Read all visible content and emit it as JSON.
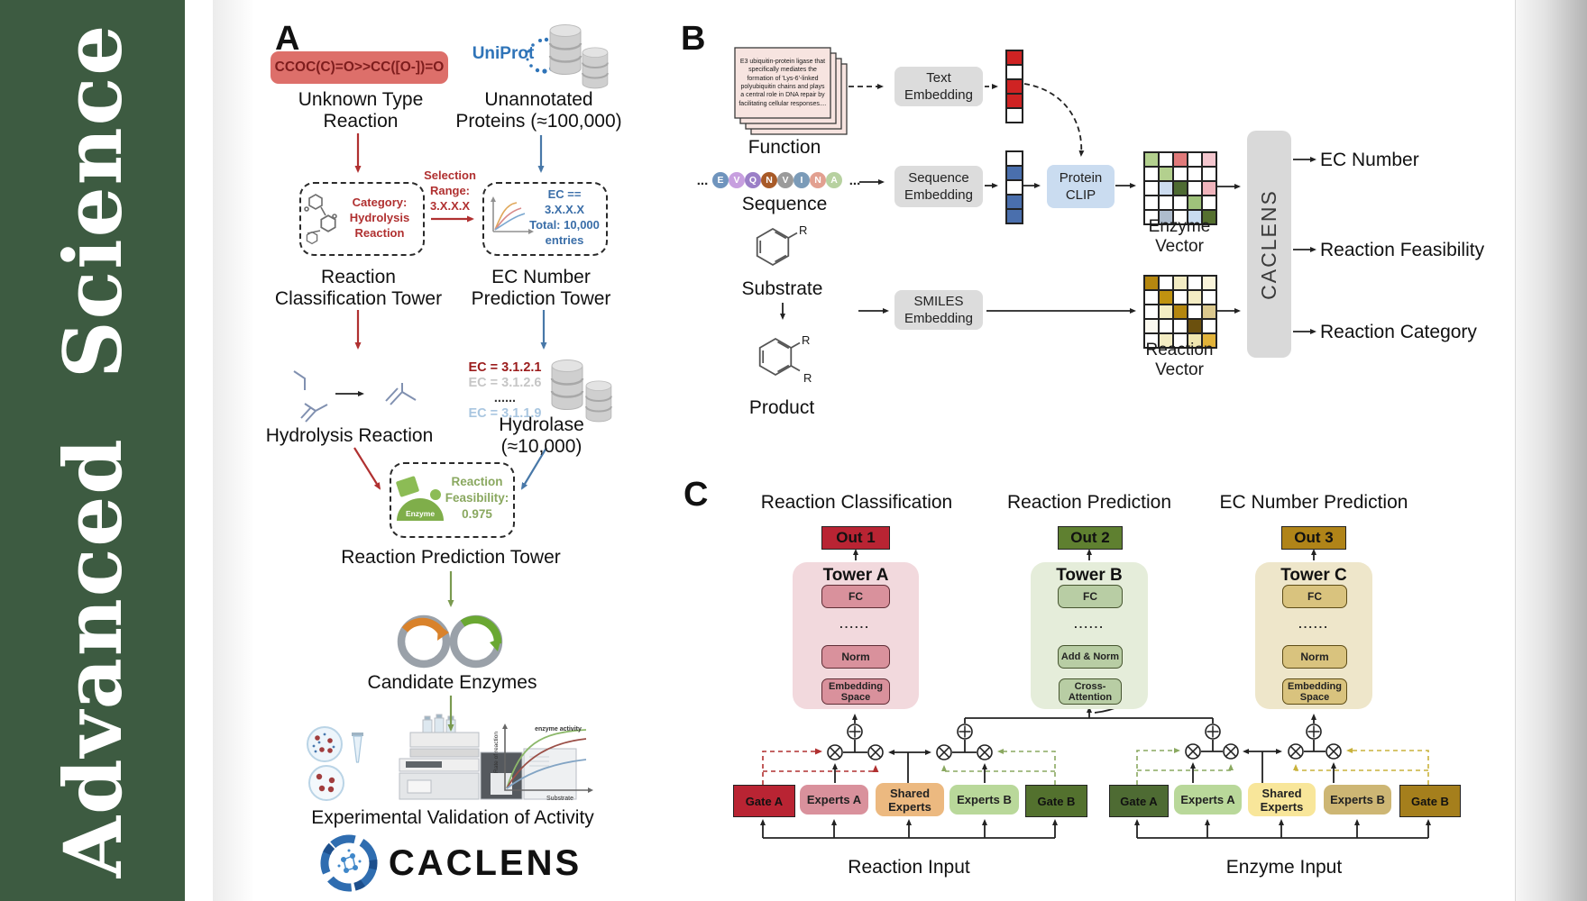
{
  "journal": {
    "name": "Advanced  Science"
  },
  "colors": {
    "journal_green": "#3d5b41",
    "smiles_box": "#dd6f6a",
    "arrow_red": "#b03030",
    "arrow_blue": "#4878a8",
    "arrow_green": "#7a9a50",
    "towerA_red": "#b92433",
    "towerB_green": "#5f8030",
    "towerC_gold": "#b08418"
  },
  "panelA": {
    "label": "A",
    "smiles": "CCOC(C)=O>>CC([O-])=O",
    "unknown_reaction": "Unknown Type\nReaction",
    "uniprot": "UniProt",
    "unannotated": "Unannotated\nProteins (≈100,000)",
    "category_text": "Category:\nHydrolysis\nReaction",
    "selection": "Selection\nRange:\n3.X.X.X",
    "ec_filter": "EC == 3.X.X.X\nTotal: 10,000\nentries",
    "classification_tower": "Reaction\nClassification Tower",
    "ec_tower": "EC Number\nPrediction Tower",
    "ec_list": [
      {
        "text": "EC = 3.1.2.1",
        "color": "#9b1c1c"
      },
      {
        "text": "EC = 3.1.2.6",
        "color": "#c6c6c6"
      },
      {
        "text": "......",
        "color": "#3a3a3a"
      },
      {
        "text": "EC = 3.1.1.9",
        "color": "#a9c6e0"
      }
    ],
    "hydrolysis": "Hydrolysis Reaction",
    "hydrolase": "Hydrolase (≈10,000)",
    "enzyme_badge": "Enzyme",
    "feasibility": "Reaction\nFeasibility:\n0.975",
    "prediction_tower": "Reaction Prediction Tower",
    "candidates": "Candidate Enzymes",
    "mini_chart": {
      "annotation": "enzyme activity",
      "ylabel": "Rate of reaction",
      "xlabel": "Substrate"
    },
    "validation": "Experimental Validation of Activity",
    "logo_text": "CACLENS"
  },
  "panelB": {
    "label": "B",
    "function_card": "E3 ubiquitin-protein ligase that specifically mediates the formation of 'Lys-6'-linked polyubiquitin chains and plays a central role in DNA repair by facilitating cellular responses....",
    "function_label": "Function",
    "ellipsis": "...",
    "residues": [
      {
        "letter": "E",
        "color": "#6f94bd"
      },
      {
        "letter": "V",
        "color": "#c79fdf"
      },
      {
        "letter": "Q",
        "color": "#9b7fc7"
      },
      {
        "letter": "N",
        "color": "#a85a28"
      },
      {
        "letter": "V",
        "color": "#9a9a9a"
      },
      {
        "letter": "I",
        "color": "#7b9bb8"
      },
      {
        "letter": "N",
        "color": "#e2a090"
      },
      {
        "letter": "A",
        "color": "#b7d1a0"
      }
    ],
    "sequence_label": "Sequence",
    "substrate_label": "Substrate",
    "product_label": "Product",
    "r_group": "R",
    "text_embedding": "Text\nEmbedding",
    "sequence_embedding": "Sequence\nEmbedding",
    "smiles_embedding": "SMILES\nEmbedding",
    "protein_clip": "Protein\nCLIP",
    "text_vector": [
      "#cf2323",
      "#ffffff",
      "#cf2323",
      "#cf2323",
      "#ffffff"
    ],
    "sequence_vector": [
      "#ffffff",
      "#4a6fad",
      "#ffffff",
      "#4a6fad",
      "#4a6fad"
    ],
    "enzyme_vector_label": "Enzyme Vector",
    "reaction_vector_label": "Reaction Vector",
    "enzyme_grid": [
      "#b3d08e",
      "#ffffff",
      "#e07a7a",
      "#ffffff",
      "#f4c6ce",
      "#ffffff",
      "#b3d08e",
      "#ffffff",
      "#ffffff",
      "#ffffff",
      "#ffffff",
      "#ccdcf0",
      "#4e6b33",
      "#ffffff",
      "#f0b4bc",
      "#ffffff",
      "#ffffff",
      "#ffffff",
      "#9fc27b",
      "#ffffff",
      "#ffffff",
      "#aebccd",
      "#ffffff",
      "#c8dcf0",
      "#55702f"
    ],
    "reaction_grid": [
      "#b5870f",
      "#ffffff",
      "#f3ecc3",
      "#ffffff",
      "#faf4da",
      "#ffffff",
      "#bf9210",
      "#ffffff",
      "#f3ecc3",
      "#ffffff",
      "#ffffff",
      "#f3ecc3",
      "#b5870f",
      "#ffffff",
      "#dcc98e",
      "#fbf9ef",
      "#ffffff",
      "#ffffff",
      "#6b500e",
      "#ffffff",
      "#ffffff",
      "#f3ecc3",
      "#ffffff",
      "#f0e6b0",
      "#e2b33a"
    ],
    "caclens": "CACLENS",
    "outputs": [
      "EC Number",
      "Reaction Feasibility",
      "Reaction Category"
    ]
  },
  "panelC": {
    "label": "C",
    "towers": [
      {
        "header": "Reaction Classification",
        "out": "Out 1",
        "name": "Tower A",
        "fc": "FC",
        "dots": "......",
        "mid": "Norm",
        "base": "Embedding\nSpace"
      },
      {
        "header": "Reaction Prediction",
        "out": "Out 2",
        "name": "Tower B",
        "fc": "FC",
        "dots": "......",
        "mid": "Add & Norm",
        "base": "Cross-\nAttention"
      },
      {
        "header": "EC Number Prediction",
        "out": "Out 3",
        "name": "Tower C",
        "fc": "FC",
        "dots": "......",
        "mid": "Norm",
        "base": "Embedding\nSpace"
      }
    ],
    "moe_groups": [
      {
        "gate_a": "Gate A",
        "experts_a": "Experts A",
        "shared": "Shared\nExperts",
        "experts_b": "Experts B",
        "gate_b": "Gate B",
        "input": "Reaction Input"
      },
      {
        "gate_a": "Gate A",
        "experts_a": "Experts A",
        "shared": "Shared\nExperts",
        "experts_b": "Experts B",
        "gate_b": "Gate B",
        "input": "Enzyme Input"
      }
    ]
  }
}
